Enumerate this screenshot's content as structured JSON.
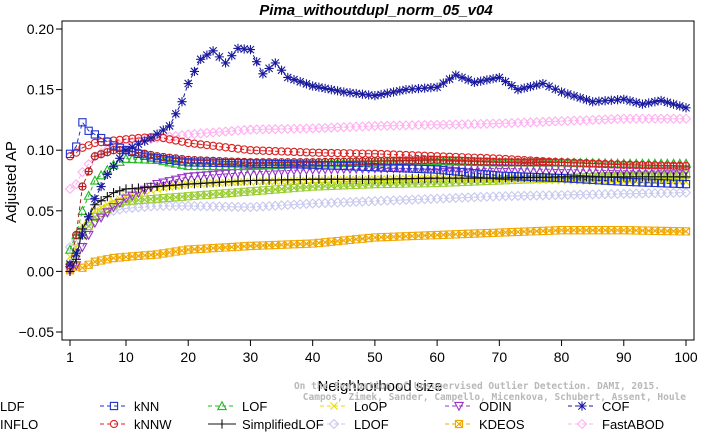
{
  "chart_data": {
    "type": "line",
    "title": "Pima_withoutdupl_norm_05_v04",
    "xlabel": "Neighborhood size",
    "ylabel": "Adjusted AP",
    "xlim": [
      1,
      100
    ],
    "ylim": [
      -0.05,
      0.2
    ],
    "xticks": [
      1,
      10,
      20,
      30,
      40,
      50,
      60,
      70,
      80,
      90,
      100
    ],
    "yticks": [
      -0.05,
      0.0,
      0.05,
      0.1,
      0.15,
      0.2
    ],
    "ytick_labels": [
      "−0.05",
      "0.00",
      "0.05",
      "0.10",
      "0.15",
      "0.20"
    ],
    "grid": false,
    "legend_position": "bottom",
    "credit": [
      "Campos, Zimek, Sander, Campello, Micenkova, Schubert, Assent, Houle",
      "On the Evaluation of Unsupervised Outlier Detection. DAMI, 2015."
    ],
    "series": [
      {
        "name": "kNN",
        "color": "#2233cc",
        "marker": "square",
        "dash": "4,3",
        "keypoints": [
          [
            1,
            0.097
          ],
          [
            2,
            0.103
          ],
          [
            3,
            0.123
          ],
          [
            4,
            0.116
          ],
          [
            6,
            0.11
          ],
          [
            8,
            0.104
          ],
          [
            10,
            0.1
          ],
          [
            14,
            0.094
          ],
          [
            20,
            0.09
          ],
          [
            30,
            0.089
          ],
          [
            40,
            0.088
          ],
          [
            50,
            0.086
          ],
          [
            60,
            0.084
          ],
          [
            70,
            0.079
          ],
          [
            80,
            0.077
          ],
          [
            90,
            0.074
          ],
          [
            100,
            0.072
          ]
        ]
      },
      {
        "name": "kNNW",
        "color": "#dd2222",
        "marker": "circle",
        "dash": "4,3",
        "keypoints": [
          [
            1,
            0.095
          ],
          [
            2,
            0.098
          ],
          [
            3,
            0.102
          ],
          [
            5,
            0.106
          ],
          [
            8,
            0.108
          ],
          [
            12,
            0.11
          ],
          [
            15,
            0.111
          ],
          [
            20,
            0.106
          ],
          [
            30,
            0.1
          ],
          [
            40,
            0.098
          ],
          [
            50,
            0.097
          ],
          [
            60,
            0.095
          ],
          [
            70,
            0.093
          ],
          [
            80,
            0.09
          ],
          [
            90,
            0.088
          ],
          [
            100,
            0.087
          ]
        ]
      },
      {
        "name": "LOF",
        "color": "#22bb22",
        "marker": "triangle",
        "dash": "4,3",
        "keypoints": [
          [
            1,
            0.018
          ],
          [
            2,
            0.03
          ],
          [
            3,
            0.05
          ],
          [
            5,
            0.075
          ],
          [
            8,
            0.088
          ],
          [
            10,
            0.093
          ],
          [
            15,
            0.092
          ],
          [
            20,
            0.087
          ],
          [
            30,
            0.087
          ],
          [
            40,
            0.089
          ],
          [
            50,
            0.09
          ],
          [
            60,
            0.091
          ],
          [
            70,
            0.09
          ],
          [
            80,
            0.09
          ],
          [
            90,
            0.089
          ],
          [
            100,
            0.089
          ]
        ]
      },
      {
        "name": "SimplifiedLOF",
        "color": "#111111",
        "marker": "plus",
        "dash": "",
        "keypoints": [
          [
            1,
            0.0
          ],
          [
            2,
            0.01
          ],
          [
            3,
            0.035
          ],
          [
            5,
            0.055
          ],
          [
            8,
            0.065
          ],
          [
            10,
            0.068
          ],
          [
            15,
            0.07
          ],
          [
            20,
            0.072
          ],
          [
            30,
            0.075
          ],
          [
            40,
            0.076
          ],
          [
            50,
            0.076
          ],
          [
            60,
            0.077
          ],
          [
            70,
            0.077
          ],
          [
            80,
            0.078
          ],
          [
            90,
            0.078
          ],
          [
            100,
            0.078
          ]
        ]
      },
      {
        "name": "LoOP",
        "color": "#e8e000",
        "marker": "cross",
        "dash": "4,3",
        "keypoints": [
          [
            1,
            0.012
          ],
          [
            2,
            0.02
          ],
          [
            3,
            0.038
          ],
          [
            5,
            0.05
          ],
          [
            8,
            0.058
          ],
          [
            10,
            0.062
          ],
          [
            15,
            0.068
          ],
          [
            20,
            0.072
          ],
          [
            30,
            0.074
          ],
          [
            40,
            0.075
          ],
          [
            50,
            0.076
          ],
          [
            60,
            0.077
          ],
          [
            70,
            0.076
          ],
          [
            80,
            0.075
          ],
          [
            90,
            0.074
          ],
          [
            100,
            0.074
          ]
        ]
      },
      {
        "name": "LDOF",
        "color": "#c8c8ee",
        "marker": "diamond",
        "dash": "4,3",
        "keypoints": [
          [
            1,
            0.02
          ],
          [
            2,
            0.025
          ],
          [
            3,
            0.035
          ],
          [
            5,
            0.045
          ],
          [
            8,
            0.05
          ],
          [
            10,
            0.052
          ],
          [
            15,
            0.054
          ],
          [
            20,
            0.054
          ],
          [
            30,
            0.053
          ],
          [
            40,
            0.056
          ],
          [
            50,
            0.058
          ],
          [
            60,
            0.06
          ],
          [
            70,
            0.062
          ],
          [
            80,
            0.063
          ],
          [
            90,
            0.064
          ],
          [
            100,
            0.065
          ]
        ]
      },
      {
        "name": "ODIN",
        "color": "#9933cc",
        "marker": "triangle-down",
        "dash": "4,3",
        "keypoints": [
          [
            1,
            0.001
          ],
          [
            2,
            0.005
          ],
          [
            3,
            0.02
          ],
          [
            5,
            0.04
          ],
          [
            8,
            0.053
          ],
          [
            10,
            0.06
          ],
          [
            15,
            0.072
          ],
          [
            20,
            0.078
          ],
          [
            30,
            0.082
          ],
          [
            40,
            0.084
          ],
          [
            50,
            0.085
          ],
          [
            60,
            0.085
          ],
          [
            70,
            0.085
          ],
          [
            80,
            0.084
          ],
          [
            90,
            0.083
          ],
          [
            100,
            0.083
          ]
        ]
      },
      {
        "name": "KDEOS",
        "color": "#f0a800",
        "marker": "square-x",
        "dash": "4,3",
        "keypoints": [
          [
            1,
            0.001
          ],
          [
            2,
            0.004
          ],
          [
            3,
            0.003
          ],
          [
            5,
            0.008
          ],
          [
            8,
            0.011
          ],
          [
            10,
            0.012
          ],
          [
            15,
            0.014
          ],
          [
            20,
            0.018
          ],
          [
            30,
            0.021
          ],
          [
            40,
            0.023
          ],
          [
            50,
            0.028
          ],
          [
            60,
            0.03
          ],
          [
            70,
            0.032
          ],
          [
            80,
            0.034
          ],
          [
            90,
            0.034
          ],
          [
            100,
            0.033
          ]
        ]
      },
      {
        "name": "COF",
        "color": "#1a1aa0",
        "marker": "star",
        "dash": "4,3",
        "keypoints": [
          [
            1,
            0.006
          ],
          [
            2,
            0.015
          ],
          [
            3,
            0.03
          ],
          [
            5,
            0.06
          ],
          [
            7,
            0.08
          ],
          [
            10,
            0.1
          ],
          [
            14,
            0.11
          ],
          [
            17,
            0.12
          ],
          [
            19,
            0.14
          ],
          [
            20,
            0.155
          ],
          [
            21,
            0.165
          ],
          [
            22,
            0.175
          ],
          [
            24,
            0.182
          ],
          [
            26,
            0.172
          ],
          [
            28,
            0.184
          ],
          [
            30,
            0.183
          ],
          [
            32,
            0.163
          ],
          [
            34,
            0.172
          ],
          [
            36,
            0.16
          ],
          [
            40,
            0.153
          ],
          [
            45,
            0.148
          ],
          [
            50,
            0.145
          ],
          [
            55,
            0.15
          ],
          [
            60,
            0.152
          ],
          [
            63,
            0.162
          ],
          [
            66,
            0.156
          ],
          [
            70,
            0.16
          ],
          [
            73,
            0.15
          ],
          [
            77,
            0.155
          ],
          [
            80,
            0.148
          ],
          [
            85,
            0.14
          ],
          [
            90,
            0.142
          ],
          [
            93,
            0.138
          ],
          [
            96,
            0.141
          ],
          [
            100,
            0.135
          ]
        ]
      },
      {
        "name": "FastABOD",
        "color": "#ffb0f0",
        "marker": "diamond",
        "dash": "4,3",
        "keypoints": [
          [
            1,
            0.068
          ],
          [
            2,
            0.072
          ],
          [
            3,
            0.082
          ],
          [
            5,
            0.095
          ],
          [
            8,
            0.103
          ],
          [
            10,
            0.106
          ],
          [
            15,
            0.11
          ],
          [
            20,
            0.113
          ],
          [
            30,
            0.117
          ],
          [
            40,
            0.118
          ],
          [
            50,
            0.12
          ],
          [
            60,
            0.121
          ],
          [
            70,
            0.122
          ],
          [
            80,
            0.124
          ],
          [
            90,
            0.126
          ],
          [
            100,
            0.126
          ]
        ]
      },
      {
        "name": "LDF",
        "color": "#b02020",
        "marker": "circle-plus",
        "dash": "4,3",
        "keypoints": [
          [
            1,
            0.005
          ],
          [
            2,
            0.03
          ],
          [
            3,
            0.07
          ],
          [
            5,
            0.095
          ],
          [
            8,
            0.1
          ],
          [
            10,
            0.1
          ],
          [
            15,
            0.095
          ],
          [
            20,
            0.092
          ],
          [
            30,
            0.09
          ],
          [
            40,
            0.09
          ],
          [
            50,
            0.091
          ],
          [
            60,
            0.092
          ],
          [
            70,
            0.09
          ],
          [
            80,
            0.09
          ],
          [
            90,
            0.088
          ],
          [
            100,
            0.087
          ]
        ]
      },
      {
        "name": "INFLO",
        "color": "#9acd32",
        "marker": "square-x",
        "dash": "4,3",
        "keypoints": [
          [
            1,
            0.005
          ],
          [
            2,
            0.015
          ],
          [
            3,
            0.03
          ],
          [
            5,
            0.045
          ],
          [
            8,
            0.055
          ],
          [
            10,
            0.058
          ],
          [
            15,
            0.06
          ],
          [
            20,
            0.062
          ],
          [
            30,
            0.066
          ],
          [
            40,
            0.07
          ],
          [
            50,
            0.072
          ],
          [
            60,
            0.073
          ],
          [
            70,
            0.075
          ],
          [
            80,
            0.077
          ],
          [
            90,
            0.079
          ],
          [
            100,
            0.08
          ]
        ]
      }
    ]
  }
}
